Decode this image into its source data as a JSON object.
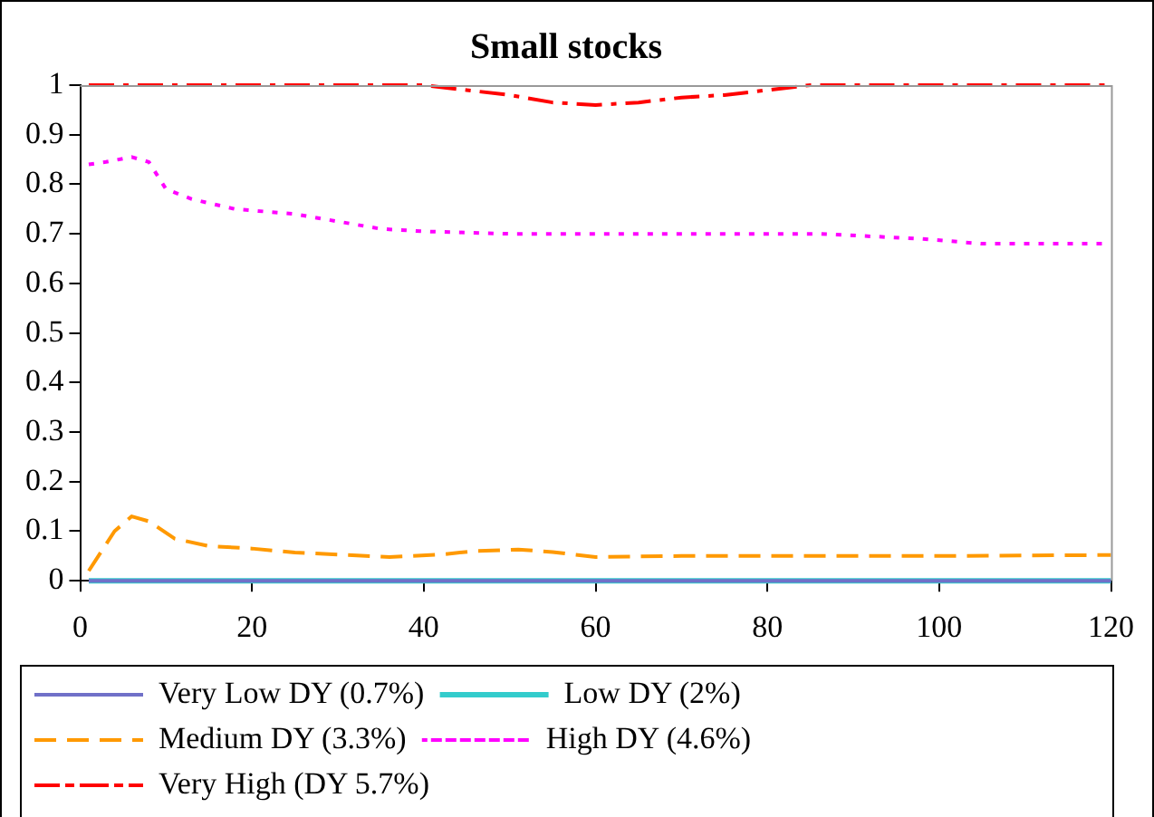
{
  "chart_data": {
    "type": "line",
    "title": "Small stocks",
    "xlim": [
      0,
      120
    ],
    "xticks": [
      0,
      20,
      40,
      60,
      80,
      100,
      120
    ],
    "ylim": [
      0,
      1
    ],
    "yticks": [
      0,
      0.1,
      0.2,
      0.3,
      0.4,
      0.5,
      0.6,
      0.7,
      0.8,
      0.9,
      1
    ],
    "grid": false,
    "legend": "bottom",
    "marker": "none",
    "series": [
      {
        "name": "Very Low DY (0.7%)",
        "color": "#7070c8",
        "line_style": "solid",
        "x": [
          1,
          120
        ],
        "values": [
          0,
          0
        ]
      },
      {
        "name": "Low DY (2%)",
        "color": "#33cccc",
        "line_style": "solid",
        "x": [
          1,
          120
        ],
        "values": [
          0,
          0
        ]
      },
      {
        "name": "Medium DY (3.3%)",
        "color": "#ff9900",
        "line_style": "dashed",
        "x": [
          1,
          4,
          6,
          8,
          11,
          15,
          20,
          25,
          30,
          36,
          42,
          46,
          51,
          55,
          60,
          70,
          80,
          100,
          120
        ],
        "values": [
          0.02,
          0.1,
          0.13,
          0.12,
          0.085,
          0.07,
          0.065,
          0.057,
          0.053,
          0.048,
          0.053,
          0.06,
          0.063,
          0.058,
          0.048,
          0.05,
          0.05,
          0.05,
          0.052
        ]
      },
      {
        "name": "High DY (4.6%)",
        "color": "#ff00ff",
        "line_style": "dotted",
        "x": [
          1,
          3,
          6,
          8,
          10,
          13,
          18,
          25,
          30,
          35,
          40,
          50,
          60,
          70,
          80,
          86,
          92,
          98,
          105,
          120
        ],
        "values": [
          0.84,
          0.845,
          0.855,
          0.845,
          0.79,
          0.77,
          0.75,
          0.74,
          0.725,
          0.71,
          0.705,
          0.7,
          0.7,
          0.7,
          0.7,
          0.7,
          0.695,
          0.69,
          0.68,
          0.68
        ]
      },
      {
        "name": "Very High (DY 5.7%)",
        "color": "#ff0000",
        "line_style": "dashdot",
        "x": [
          1,
          10,
          20,
          30,
          40,
          45,
          50,
          55,
          60,
          65,
          70,
          75,
          80,
          85,
          100,
          120
        ],
        "values": [
          1,
          1,
          1,
          1,
          1,
          0.99,
          0.98,
          0.965,
          0.96,
          0.965,
          0.975,
          0.98,
          0.99,
          1,
          1,
          1
        ]
      }
    ]
  }
}
